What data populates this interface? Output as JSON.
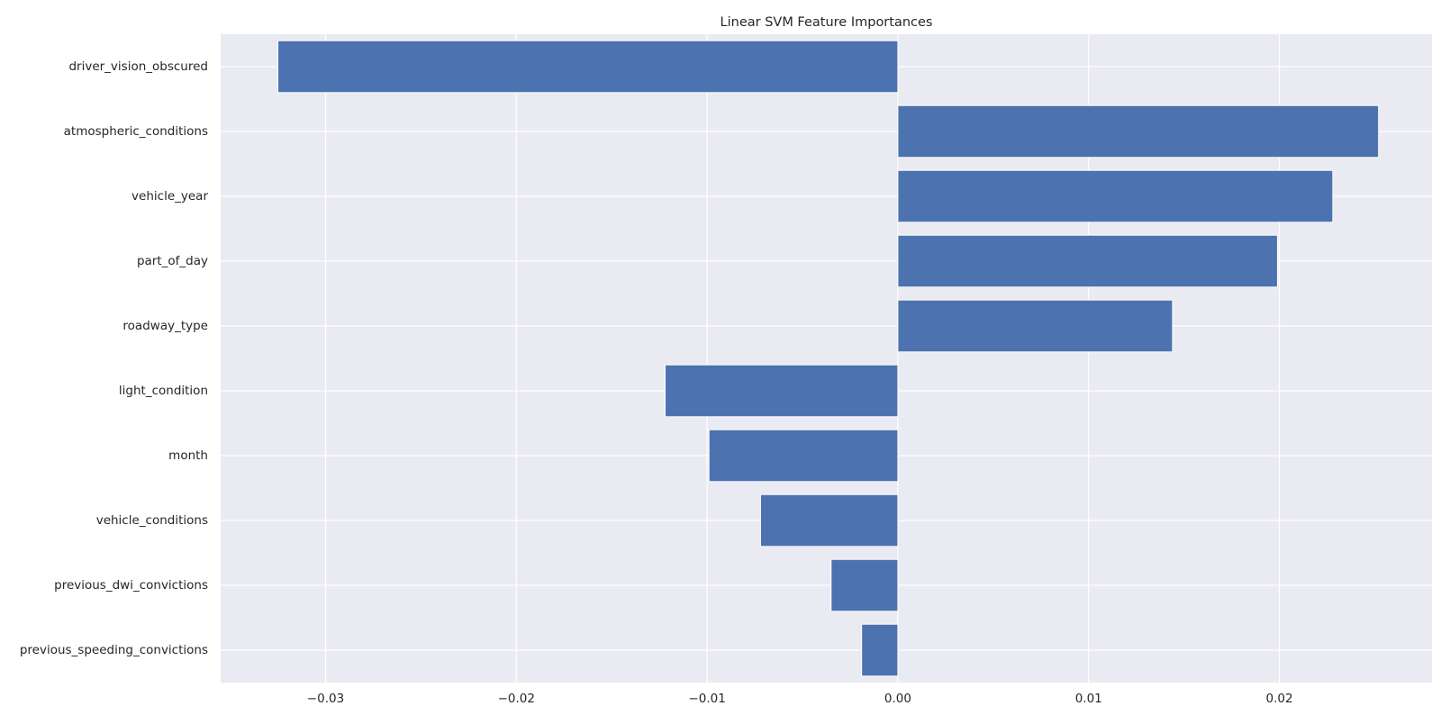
{
  "chart_data": {
    "type": "bar",
    "orientation": "horizontal",
    "title": "Linear SVM Feature Importances",
    "xlabel": "",
    "ylabel": "",
    "categories": [
      "driver_vision_obscured",
      "atmospheric_conditions",
      "vehicle_year",
      "part_of_day",
      "roadway_type",
      "light_condition",
      "month",
      "vehicle_conditions",
      "previous_dwi_convictions",
      "previous_speeding_convictions"
    ],
    "values": [
      -0.0325,
      0.0252,
      0.0228,
      0.0199,
      0.0144,
      -0.0122,
      -0.0099,
      -0.0072,
      -0.0035,
      -0.0019
    ],
    "xlim": [
      -0.0355,
      0.028
    ],
    "xticks": [
      -0.03,
      -0.02,
      -0.01,
      0.0,
      0.01,
      0.02
    ],
    "xtick_labels": [
      "−0.03",
      "−0.02",
      "−0.01",
      "0.00",
      "0.01",
      "0.02"
    ],
    "grid": true,
    "legend": "none",
    "colors": {
      "bar": "#4c72b0",
      "plot_background": "#eaeaf2",
      "grid": "#ffffff",
      "text": "#262626"
    }
  }
}
